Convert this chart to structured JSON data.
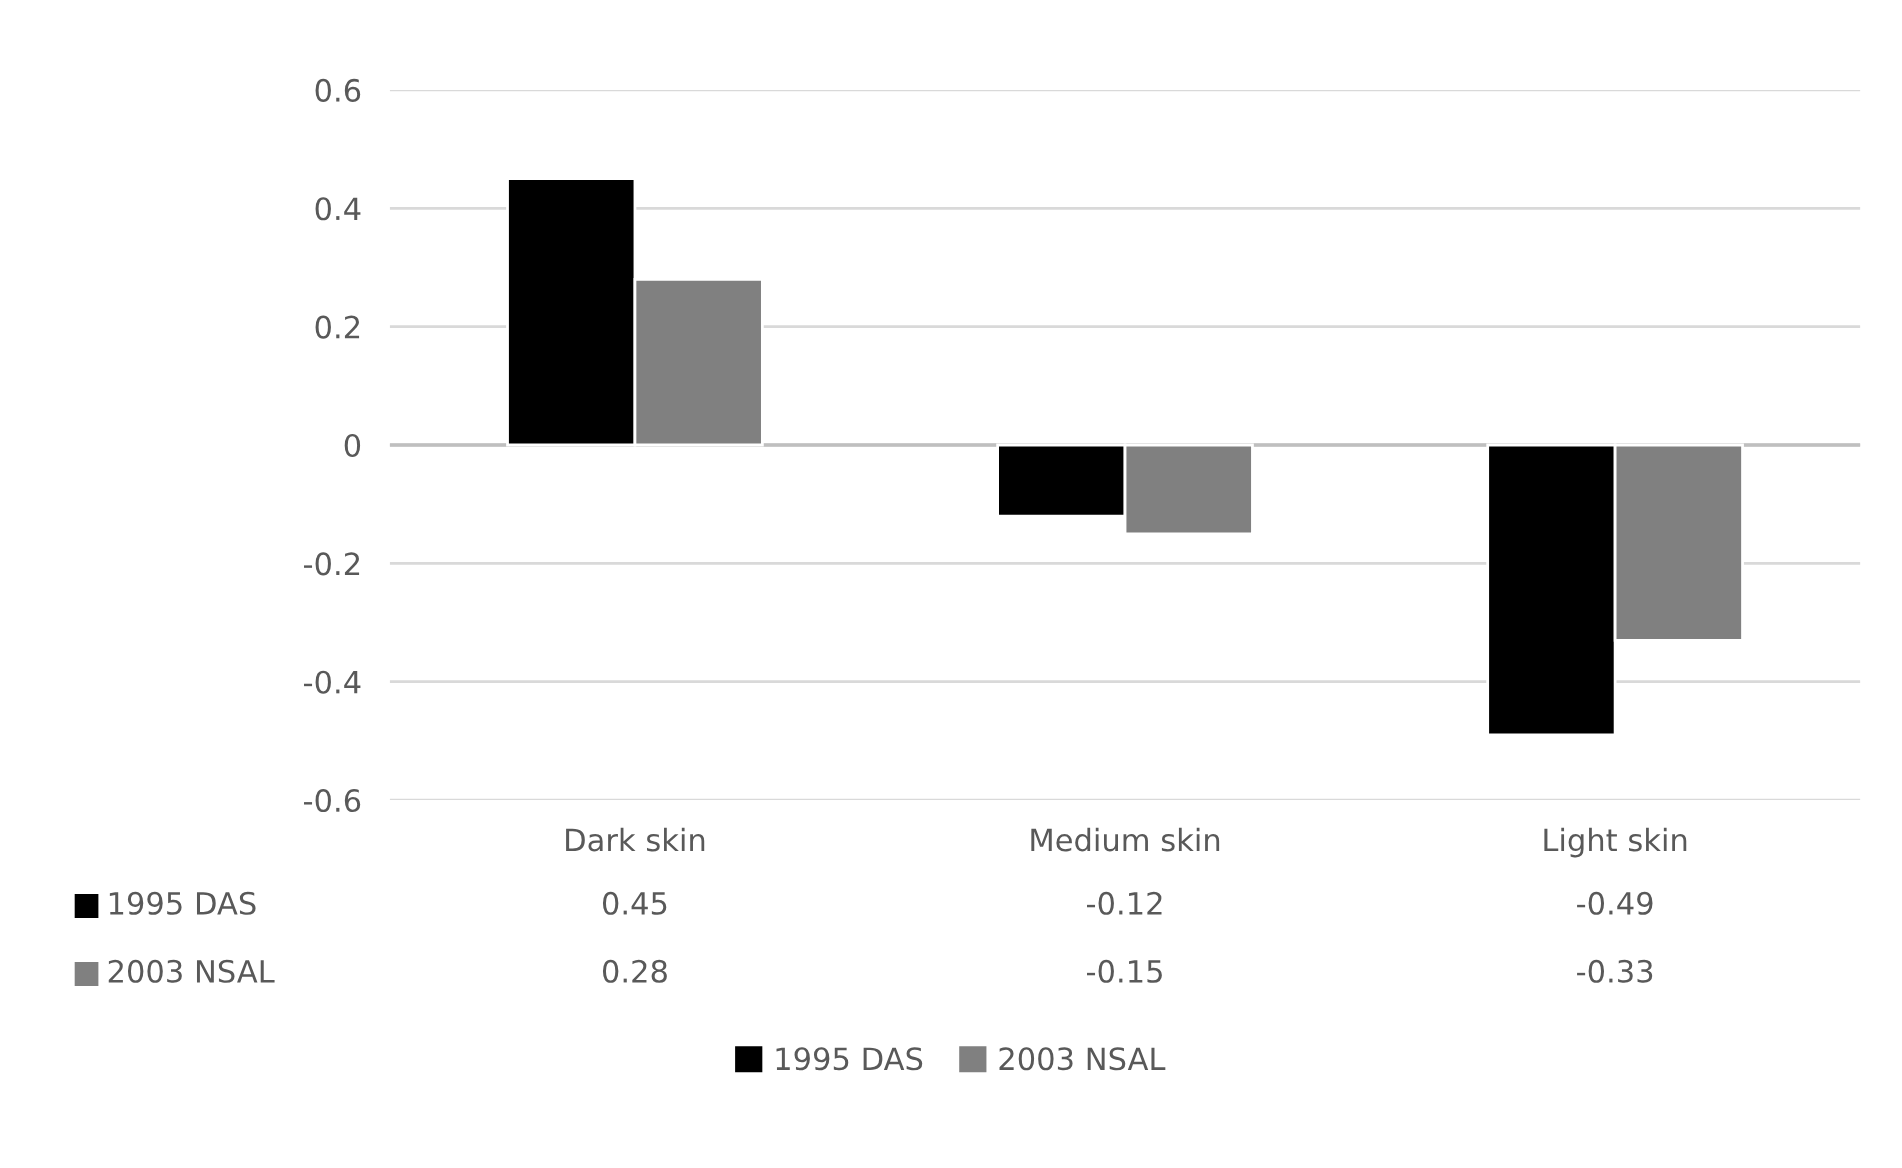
{
  "chart_data": {
    "type": "bar",
    "categories": [
      "Dark skin",
      "Medium skin",
      "Light skin"
    ],
    "series": [
      {
        "name": "1995 DAS",
        "color": "#000000",
        "values": [
          0.45,
          -0.12,
          -0.49
        ]
      },
      {
        "name": "2003 NSAL",
        "color": "#808080",
        "values": [
          0.28,
          -0.15,
          -0.33
        ]
      }
    ],
    "ylim": [
      -0.6,
      0.6
    ],
    "yticks": [
      -0.6,
      -0.4,
      -0.2,
      0,
      0.2,
      0.4,
      0.6
    ],
    "grid": "y",
    "legend": "bottom",
    "data_labels": true
  }
}
